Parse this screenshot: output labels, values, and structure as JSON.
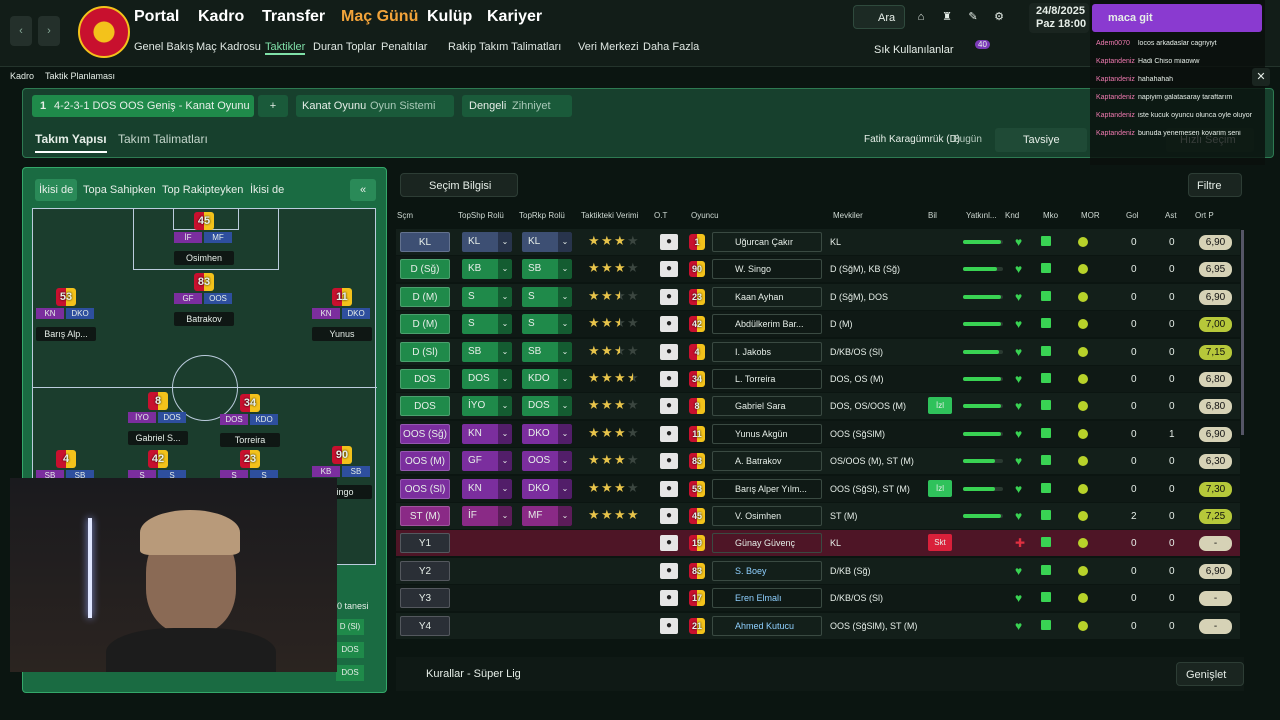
{
  "header": {
    "menu": [
      "Portal",
      "Kadro",
      "Transfer",
      "Maç Günü",
      "Kulüp",
      "Kariyer"
    ],
    "submenu": [
      "Genel Bakış",
      "Maç Kadrosu",
      "Taktikler",
      "Duran Toplar",
      "Penaltılar",
      "Rakip Takım Talimatları",
      "Veri Merkezi",
      "Daha Fazla"
    ],
    "search": "Ara",
    "date": "24/8/2025",
    "day": "Paz",
    "time": "18:00",
    "favorites": "Sık Kullanılanlar",
    "badge": "40"
  },
  "breadcrumb": [
    "Kadro",
    "Taktik Planlaması"
  ],
  "tactic_bar": {
    "slot": "1",
    "tactic": "4-2-3-1 DOS OOS Geniş - Kanat Oyunu",
    "add": "+",
    "style": "Kanat Oyunu",
    "style_label": "Oyun Sistemi",
    "mentality": "Dengeli",
    "mentality_label": "Zihniyet"
  },
  "tabs": [
    "Takım Yapısı",
    "Takım Talimatları"
  ],
  "opponent": "Fatih Karagümrük (D)",
  "when": "Bugün",
  "advice": "Tavsiye",
  "quick_pick": "Hızlı Seçim",
  "pitch": {
    "filters": [
      "İkisi de",
      "Topa Sahipken",
      "Top Rakipteyken",
      "İkisi de"
    ],
    "players": [
      {
        "no": 45,
        "name": "Osimhen",
        "roles": [
          "İF",
          "MF"
        ]
      },
      {
        "no": 83,
        "name": "Batrakov",
        "roles": [
          "GF",
          "OOS"
        ]
      },
      {
        "no": 53,
        "name": "Barış Alp...",
        "roles": [
          "KN",
          "DKO"
        ]
      },
      {
        "no": 11,
        "name": "Yunus",
        "roles": [
          "KN",
          "DKO"
        ]
      },
      {
        "no": 8,
        "name": "Gabriel S...",
        "roles": [
          "İYO",
          "DOS"
        ]
      },
      {
        "no": 34,
        "name": "Torreira",
        "roles": [
          "DOS",
          "KDO"
        ]
      },
      {
        "no": 4,
        "roles": [
          "SB",
          "SB"
        ]
      },
      {
        "no": 42,
        "roles": [
          "S",
          "S"
        ]
      },
      {
        "no": 23,
        "roles": [
          "S",
          "S"
        ]
      },
      {
        "no": 90,
        "name": "Singo",
        "roles": [
          "KB",
          "SB"
        ]
      }
    ],
    "bench_note": "0 tanesi",
    "bench_roles": [
      "D (Sl)",
      "DOS",
      "DOS"
    ]
  },
  "table": {
    "selection_info": "Seçim Bilgisi",
    "filter": "Filtre",
    "columns": [
      "Sçm",
      "TopShp Rolü",
      "TopRkp Rolü",
      "Taktikteki Verimi",
      "O.T",
      "Oyuncu",
      "Mevkiler",
      "Bil",
      "Yatkınl...",
      "Knd",
      "Mko",
      "MOR",
      "Gol",
      "Ast",
      "Ort P"
    ],
    "rows": [
      {
        "pos": "KL",
        "color": "#3d4f73",
        "role_ip": "KL",
        "role_oop": "KL",
        "rating": 3,
        "no": 1,
        "name": "Uğurcan Çakır",
        "positions": "KL",
        "fit": 95,
        "goals": "0",
        "assists": "0",
        "avg": "6,90"
      },
      {
        "pos": "D (Sğ)",
        "color": "#1f8a4a",
        "role_ip": "KB",
        "role_oop": "SB",
        "rating": 3,
        "no": 90,
        "name": "W. Singo",
        "positions": "D (SğM), KB (Sğ)",
        "fit": 85,
        "goals": "0",
        "assists": "0",
        "avg": "6,95"
      },
      {
        "pos": "D (M)",
        "color": "#1f8a4a",
        "role_ip": "S",
        "role_oop": "S",
        "rating": 2.5,
        "no": 23,
        "name": "Kaan Ayhan",
        "positions": "D (SğM), DOS",
        "fit": 95,
        "goals": "0",
        "assists": "0",
        "avg": "6,90"
      },
      {
        "pos": "D (M)",
        "color": "#1f8a4a",
        "role_ip": "S",
        "role_oop": "S",
        "rating": 2.5,
        "no": 42,
        "name": "Abdülkerim Bar...",
        "positions": "D (M)",
        "fit": 95,
        "goals": "0",
        "assists": "0",
        "avg": "7,00"
      },
      {
        "pos": "D (Sl)",
        "color": "#1f8a4a",
        "role_ip": "SB",
        "role_oop": "SB",
        "rating": 2.5,
        "no": 4,
        "name": "I. Jakobs",
        "positions": "D/KB/OS (Sl)",
        "fit": 90,
        "goals": "0",
        "assists": "0",
        "avg": "7,15"
      },
      {
        "pos": "DOS",
        "color": "#1f8a4a",
        "role_ip": "DOS",
        "role_oop": "KDO",
        "rating": 3.5,
        "no": 34,
        "name": "L. Torreira",
        "positions": "DOS, OS (M)",
        "fit": 95,
        "goals": "0",
        "assists": "0",
        "avg": "6,80"
      },
      {
        "pos": "DOS",
        "color": "#1f8a4a",
        "role_ip": "İYO",
        "role_oop": "DOS",
        "rating": 3,
        "no": 8,
        "name": "Gabriel Sara",
        "positions": "DOS, OS/OOS (M)",
        "bil": "İzl",
        "fit": 95,
        "goals": "0",
        "assists": "0",
        "avg": "6,80"
      },
      {
        "pos": "OOS (Sğ)",
        "color": "#7b2e9e",
        "role_ip": "KN",
        "role_oop": "DKO",
        "rating": 3,
        "no": 11,
        "name": "Yunus Akgün",
        "positions": "OOS (SğSlM)",
        "fit": 95,
        "goals": "0",
        "assists": "1",
        "avg": "6,90"
      },
      {
        "pos": "OOS (M)",
        "color": "#7b2e9e",
        "role_ip": "GF",
        "role_oop": "OOS",
        "rating": 3,
        "no": 83,
        "name": "A. Batrakov",
        "positions": "OS/OOS (M), ST (M)",
        "fit": 80,
        "goals": "0",
        "assists": "0",
        "avg": "6,30"
      },
      {
        "pos": "OOS (Sl)",
        "color": "#7b2e9e",
        "role_ip": "KN",
        "role_oop": "DKO",
        "rating": 3,
        "no": 53,
        "name": "Barış Alper Yılm...",
        "positions": "OOS (SğSl), ST (M)",
        "bil": "İzl",
        "fit": 80,
        "goals": "0",
        "assists": "0",
        "avg": "7,30"
      },
      {
        "pos": "ST (M)",
        "color": "#8a2a86",
        "role_ip": "İF",
        "role_oop": "MF",
        "rating": 4,
        "no": 45,
        "name": "V. Osimhen",
        "positions": "ST (M)",
        "fit": 95,
        "goals": "2",
        "assists": "0",
        "avg": "7,25"
      },
      {
        "pos": "Y1",
        "color": "#2a2f36",
        "no": 19,
        "name": "Günay Güvenç",
        "positions": "KL",
        "bil": "Skt",
        "goals": "0",
        "assists": "0",
        "avg": "-"
      },
      {
        "pos": "Y2",
        "color": "#2a2f36",
        "no": 83,
        "name": "S. Boey",
        "positions": "D/KB (Sğ)",
        "goals": "0",
        "assists": "0",
        "avg": "6,90"
      },
      {
        "pos": "Y3",
        "color": "#2a2f36",
        "no": 17,
        "name": "Eren Elmalı",
        "positions": "D/KB/OS (Sl)",
        "goals": "0",
        "assists": "0",
        "avg": "-"
      },
      {
        "pos": "Y4",
        "color": "#2a2f36",
        "no": 21,
        "name": "Ahmed Kutucu",
        "positions": "OOS (SğSlM), ST (M)",
        "goals": "0",
        "assists": "0",
        "avg": "-"
      }
    ]
  },
  "footer": {
    "rules": "Kurallar - Süper Lig",
    "expand": "Genişlet"
  },
  "chat": {
    "highlight": "maca git",
    "messages": [
      {
        "user": "Adem0070",
        "text": "locos arkadaslar cagriyiyt"
      },
      {
        "user": "Kaptandeniz",
        "text": "Hadi Chiso miaoww"
      },
      {
        "user": "Kaptandeniz",
        "text": "hahahahah"
      },
      {
        "user": "Kaptandeniz",
        "text": "napiyim galatasaray taraftarım"
      },
      {
        "user": "Kaptandeniz",
        "text": "iste kucuk oyuncu olunca oyle oluyor"
      },
      {
        "user": "Kaptandeniz",
        "text": "bunuda yenemesen kovarim seni"
      }
    ]
  }
}
